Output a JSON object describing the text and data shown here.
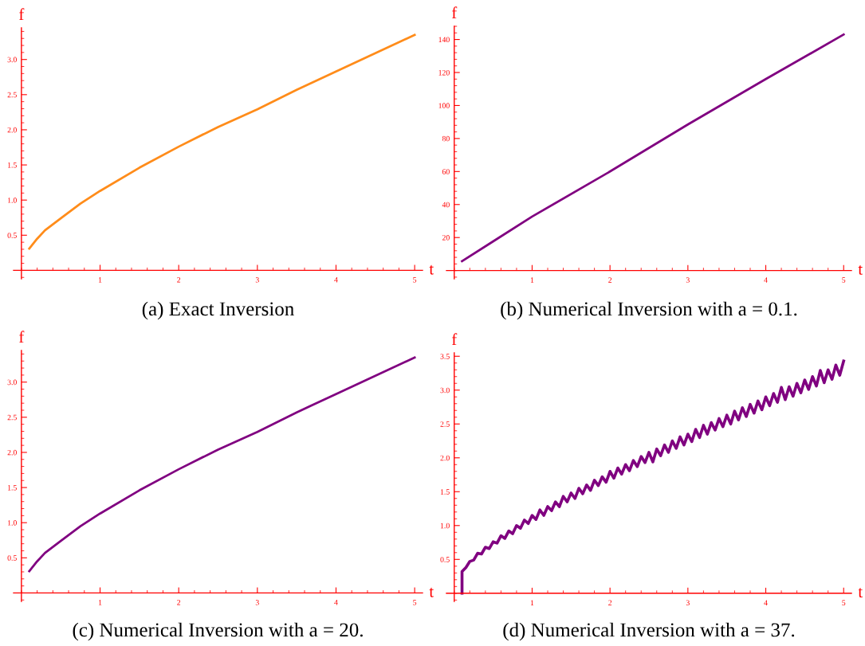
{
  "chart_data": [
    {
      "type": "line",
      "title": "(a) Exact Inversion",
      "xlabel": "t",
      "ylabel": "f",
      "xlim": [
        -0.1,
        5.1
      ],
      "ylim": [
        -0.12,
        3.45
      ],
      "xticks": [
        1,
        2,
        3,
        4,
        5
      ],
      "yticks": [
        0.5,
        {
          "value": 1,
          "label": "1.0"
        },
        1.5,
        {
          "value": 2,
          "label": "2.0"
        },
        2.5,
        {
          "value": 3,
          "label": "3.0"
        }
      ],
      "grid": false,
      "legend": false,
      "marker": "none",
      "line_style": "solid",
      "series": [
        {
          "color": "#ff8c1a",
          "x": [
            0.1,
            0.2,
            0.3,
            0.5,
            0.75,
            1,
            1.5,
            2,
            2.5,
            3,
            3.5,
            4,
            4.5,
            5
          ],
          "values": [
            0.31,
            0.45,
            0.57,
            0.74,
            0.95,
            1.13,
            1.46,
            1.76,
            2.04,
            2.29,
            2.57,
            2.83,
            3.09,
            3.35
          ]
        }
      ]
    },
    {
      "type": "line",
      "title": "(b) Numerical Inversion with a = 0.1.",
      "xlabel": "t",
      "ylabel": "f",
      "xlim": [
        -0.1,
        5.1
      ],
      "ylim": [
        -5,
        148
      ],
      "xticks": [
        1,
        2,
        3,
        4,
        5
      ],
      "yticks": [
        20,
        40,
        60,
        80,
        100,
        120,
        140
      ],
      "grid": false,
      "legend": false,
      "marker": "none",
      "line_style": "solid",
      "series": [
        {
          "color": "#800080",
          "x": [
            0.1,
            0.5,
            1,
            2,
            3,
            4,
            5
          ],
          "values": [
            5.7,
            17.7,
            32.7,
            60,
            88.5,
            116,
            143
          ]
        }
      ]
    },
    {
      "type": "line",
      "title": "(c) Numerical Inversion with a = 20.",
      "xlabel": "t",
      "ylabel": "f",
      "xlim": [
        -0.1,
        5.1
      ],
      "ylim": [
        -0.12,
        3.45
      ],
      "xticks": [
        1,
        2,
        3,
        4,
        5
      ],
      "yticks": [
        0.5,
        {
          "value": 1,
          "label": "1.0"
        },
        1.5,
        {
          "value": 2,
          "label": "2.0"
        },
        2.5,
        {
          "value": 3,
          "label": "3.0"
        }
      ],
      "grid": false,
      "legend": false,
      "marker": "none",
      "line_style": "solid",
      "series": [
        {
          "color": "#800080",
          "x": [
            0.1,
            0.2,
            0.3,
            0.5,
            0.75,
            1,
            1.5,
            2,
            2.5,
            3,
            3.5,
            4,
            4.5,
            5
          ],
          "values": [
            0.31,
            0.45,
            0.57,
            0.74,
            0.95,
            1.13,
            1.46,
            1.76,
            2.04,
            2.29,
            2.57,
            2.83,
            3.09,
            3.35
          ]
        }
      ]
    },
    {
      "type": "line",
      "title": "(d) Numerical Inversion with a = 37.",
      "xlabel": "t",
      "ylabel": "f",
      "xlim": [
        -0.1,
        5.1
      ],
      "ylim": [
        -0.12,
        3.55
      ],
      "xticks": [
        1,
        2,
        3,
        4,
        5
      ],
      "yticks": [
        0.5,
        {
          "value": 1,
          "label": "1.0"
        },
        1.5,
        {
          "value": 2,
          "label": "2.0"
        },
        2.5,
        {
          "value": 3,
          "label": "3.0"
        },
        3.5
      ],
      "grid": false,
      "legend": false,
      "marker": "none",
      "line_style": "solid",
      "series": [
        {
          "color": "#800080",
          "x": [
            0.1,
            0.1,
            0.15,
            0.2,
            0.25,
            0.3,
            0.35,
            0.4,
            0.45,
            0.5,
            0.55,
            0.6,
            0.65,
            0.7,
            0.75,
            0.8,
            0.85,
            0.9,
            0.95,
            1.0,
            1.05,
            1.1,
            1.15,
            1.2,
            1.25,
            1.3,
            1.35,
            1.4,
            1.45,
            1.5,
            1.55,
            1.6,
            1.65,
            1.7,
            1.75,
            1.8,
            1.85,
            1.9,
            1.95,
            2.0,
            2.05,
            2.1,
            2.15,
            2.2,
            2.25,
            2.3,
            2.35,
            2.4,
            2.45,
            2.5,
            2.55,
            2.6,
            2.65,
            2.7,
            2.75,
            2.8,
            2.85,
            2.9,
            2.95,
            3.0,
            3.05,
            3.1,
            3.15,
            3.2,
            3.25,
            3.3,
            3.35,
            3.4,
            3.45,
            3.5,
            3.55,
            3.6,
            3.65,
            3.7,
            3.75,
            3.8,
            3.85,
            3.9,
            3.95,
            4.0,
            4.05,
            4.1,
            4.15,
            4.2,
            4.25,
            4.3,
            4.35,
            4.4,
            4.45,
            4.5,
            4.55,
            4.6,
            4.65,
            4.7,
            4.75,
            4.8,
            4.85,
            4.9,
            4.95,
            5.0
          ],
          "values": [
            0,
            0.32,
            0.38,
            0.47,
            0.49,
            0.59,
            0.58,
            0.68,
            0.66,
            0.76,
            0.74,
            0.85,
            0.81,
            0.92,
            0.88,
            1.0,
            0.96,
            1.08,
            1.03,
            1.15,
            1.09,
            1.23,
            1.15,
            1.28,
            1.22,
            1.35,
            1.28,
            1.43,
            1.35,
            1.48,
            1.4,
            1.55,
            1.47,
            1.6,
            1.52,
            1.67,
            1.59,
            1.72,
            1.64,
            1.8,
            1.7,
            1.85,
            1.76,
            1.9,
            1.81,
            1.96,
            1.87,
            2.02,
            1.93,
            2.08,
            1.94,
            2.13,
            2.03,
            2.19,
            2.08,
            2.25,
            2.14,
            2.31,
            2.19,
            2.35,
            2.24,
            2.42,
            2.3,
            2.48,
            2.35,
            2.52,
            2.41,
            2.58,
            2.46,
            2.63,
            2.5,
            2.69,
            2.56,
            2.74,
            2.61,
            2.79,
            2.66,
            2.84,
            2.71,
            2.9,
            2.77,
            2.95,
            2.82,
            3.04,
            2.86,
            3.05,
            2.91,
            3.1,
            2.96,
            3.15,
            3.01,
            3.2,
            3.06,
            3.29,
            3.11,
            3.3,
            3.16,
            3.37,
            3.22,
            3.43
          ]
        }
      ]
    }
  ]
}
